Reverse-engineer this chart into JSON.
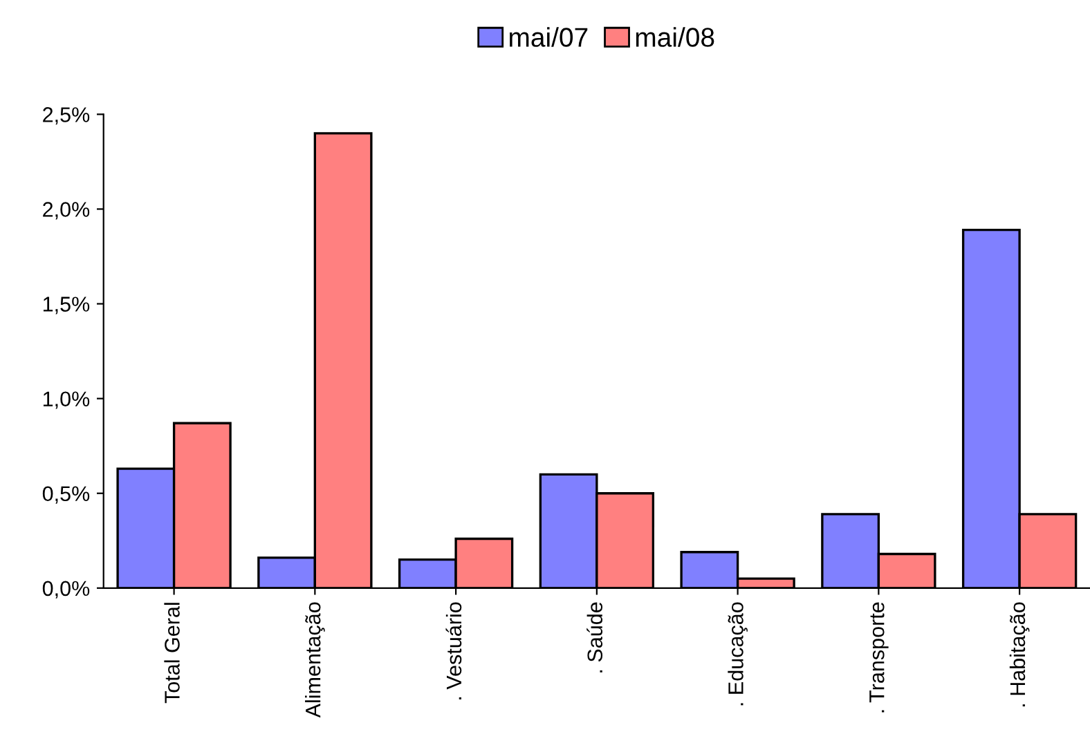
{
  "chart_data": {
    "type": "bar",
    "categories": [
      "Total Geral",
      "Alimentação",
      ". Vestuário",
      ". Saúde",
      ". Educação",
      ". Transporte",
      ". Habitação"
    ],
    "series": [
      {
        "name": "mai/07",
        "color": "#8080ff",
        "values": [
          0.63,
          0.16,
          0.15,
          0.6,
          0.19,
          0.39,
          1.89
        ]
      },
      {
        "name": "mai/08",
        "color": "#ff8080",
        "values": [
          0.87,
          2.4,
          0.26,
          0.5,
          0.05,
          0.18,
          0.39
        ]
      }
    ],
    "ylim": [
      0,
      2.5
    ],
    "yticks": [
      {
        "value": 0,
        "label": "0,0%"
      },
      {
        "value": 0.5,
        "label": "0,5%"
      },
      {
        "value": 1,
        "label": "1,0%"
      },
      {
        "value": 1.5,
        "label": "1,5%"
      },
      {
        "value": 2,
        "label": "2,0%"
      },
      {
        "value": 2.5,
        "label": "2,5%"
      }
    ],
    "grid": false,
    "legend": "top"
  }
}
